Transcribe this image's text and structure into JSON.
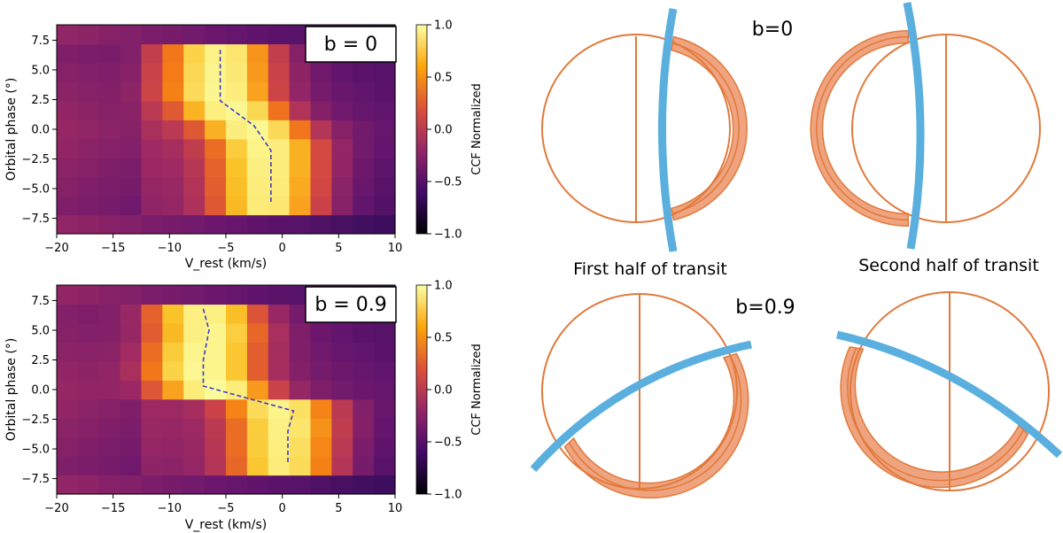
{
  "colors": {
    "line": "#3c3ccc",
    "beam": "#5aafdf",
    "planet_stroke": "#e07a3c",
    "limb_fill": "#efa37e"
  },
  "chart_data": [
    {
      "type": "heatmap",
      "panel": "top",
      "label": "b = 0",
      "xlabel": "V_rest (km/s)",
      "ylabel": "Orbital phase (°)",
      "xlim": [
        -20,
        10
      ],
      "ylim": [
        -8.8,
        8.8
      ],
      "xticks": [
        -20,
        -15,
        -10,
        -5,
        0,
        5,
        10
      ],
      "yticks": [
        -7.5,
        -5.0,
        -2.5,
        0.0,
        2.5,
        5.0,
        7.5
      ],
      "xtick_labels": [
        "−20",
        "−15",
        "−10",
        "−5",
        "0",
        "5",
        "10"
      ],
      "ytick_labels": [
        "−7.5",
        "−5.0",
        "−2.5",
        "0.0",
        "2.5",
        "5.0",
        "7.5"
      ],
      "colorbar": {
        "label": "CCF Normalized",
        "range": [
          -1,
          1
        ],
        "ticks": [
          1.0,
          0.5,
          0.0,
          -0.5,
          -1.0
        ],
        "tick_labels": [
          "1.0",
          "0.5",
          "0.0",
          "−0.5",
          "−1.0"
        ]
      },
      "trail": [
        [
          -5.5,
          6.7
        ],
        [
          -5.5,
          2.4
        ],
        [
          -2.5,
          0.3
        ],
        [
          -1.0,
          -1.8
        ],
        [
          -1.0,
          -6.2
        ]
      ],
      "grid": []
    },
    {
      "type": "heatmap",
      "panel": "bottom",
      "label": "b = 0.9",
      "xlabel": "V_rest (km/s)",
      "ylabel": "Orbital phase (°)",
      "xlim": [
        -20,
        10
      ],
      "ylim": [
        -8.8,
        8.8
      ],
      "xticks": [
        -20,
        -15,
        -10,
        -5,
        0,
        5,
        10
      ],
      "yticks": [
        -7.5,
        -5.0,
        -2.5,
        0.0,
        2.5,
        5.0,
        7.5
      ],
      "xtick_labels": [
        "−20",
        "−15",
        "−10",
        "−5",
        "0",
        "5",
        "10"
      ],
      "ytick_labels": [
        "−7.5",
        "−5.0",
        "−2.5",
        "0.0",
        "2.5",
        "5.0",
        "7.5"
      ],
      "colorbar": {
        "label": "CCF Normalized",
        "range": [
          -1,
          1
        ],
        "ticks": [
          1.0,
          0.5,
          0.0,
          -0.5,
          -1.0
        ],
        "tick_labels": [
          "1.0",
          "0.5",
          "0.0",
          "−0.5",
          "−1.0"
        ]
      },
      "trail": [
        [
          -7.0,
          6.8
        ],
        [
          -6.5,
          5.0
        ],
        [
          -7.0,
          2.5
        ],
        [
          -7.0,
          0.3
        ],
        [
          1.0,
          -1.8
        ],
        [
          0.5,
          -3.5
        ],
        [
          0.5,
          -6.2
        ]
      ],
      "grid": []
    }
  ],
  "diagram": {
    "label_b0": "b=0",
    "label_b09": "b=0.9",
    "caption_first": "First half of transit",
    "caption_second": "Second half of transit"
  }
}
